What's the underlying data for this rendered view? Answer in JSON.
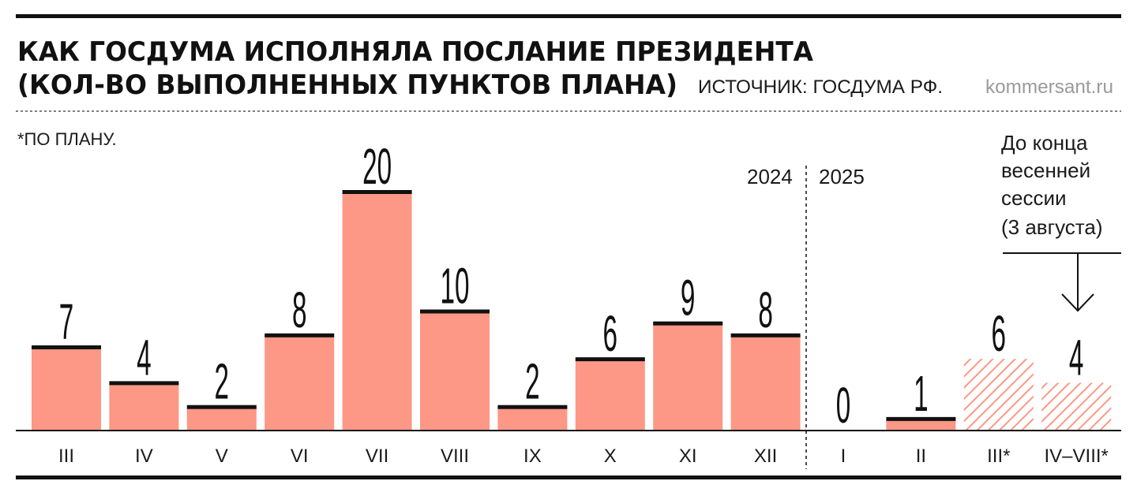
{
  "header": {
    "title_line1": "КАК ГОСДУМА ИСПОЛНЯЛА ПОСЛАНИЕ ПРЕЗИДЕНТА",
    "title_line2": "(КОЛ-ВО ВЫПОЛНЕННЫХ ПУНКТОВ ПЛАНА)",
    "source": "ИСТОЧНИК: ГОСДУМА РФ.",
    "site": "kommersant.ru"
  },
  "footnote": "*ПО ПЛАНУ.",
  "annotation": {
    "lines": [
      "До конца",
      "весенней",
      "сессии",
      "(3 августа)"
    ]
  },
  "years": {
    "left": "2024",
    "right": "2025"
  },
  "colors": {
    "bar": "#fc9885",
    "bar_cap": "#111111",
    "planned_hatch": "#fc9885",
    "rule": "#111111"
  },
  "chart_data": {
    "type": "bar",
    "categories": [
      "III",
      "IV",
      "V",
      "VI",
      "VII",
      "VIII",
      "IX",
      "X",
      "XI",
      "XII",
      "I",
      "II",
      "III*",
      "IV–VIII*"
    ],
    "values": [
      7,
      4,
      2,
      8,
      20,
      10,
      2,
      6,
      9,
      8,
      0,
      1,
      6,
      4
    ],
    "planned": [
      false,
      false,
      false,
      false,
      false,
      false,
      false,
      false,
      false,
      false,
      false,
      false,
      true,
      true
    ],
    "year_split_after_index": 9,
    "title": "КАК ГОСДУМА ИСПОЛНЯЛА ПОСЛАНИЕ ПРЕЗИДЕНТА (КОЛ-ВО ВЫПОЛНЕННЫХ ПУНКТОВ ПЛАНА)",
    "xlabel": "",
    "ylabel": "",
    "ylim": [
      0,
      20
    ],
    "grid": false,
    "data_labels": true
  }
}
